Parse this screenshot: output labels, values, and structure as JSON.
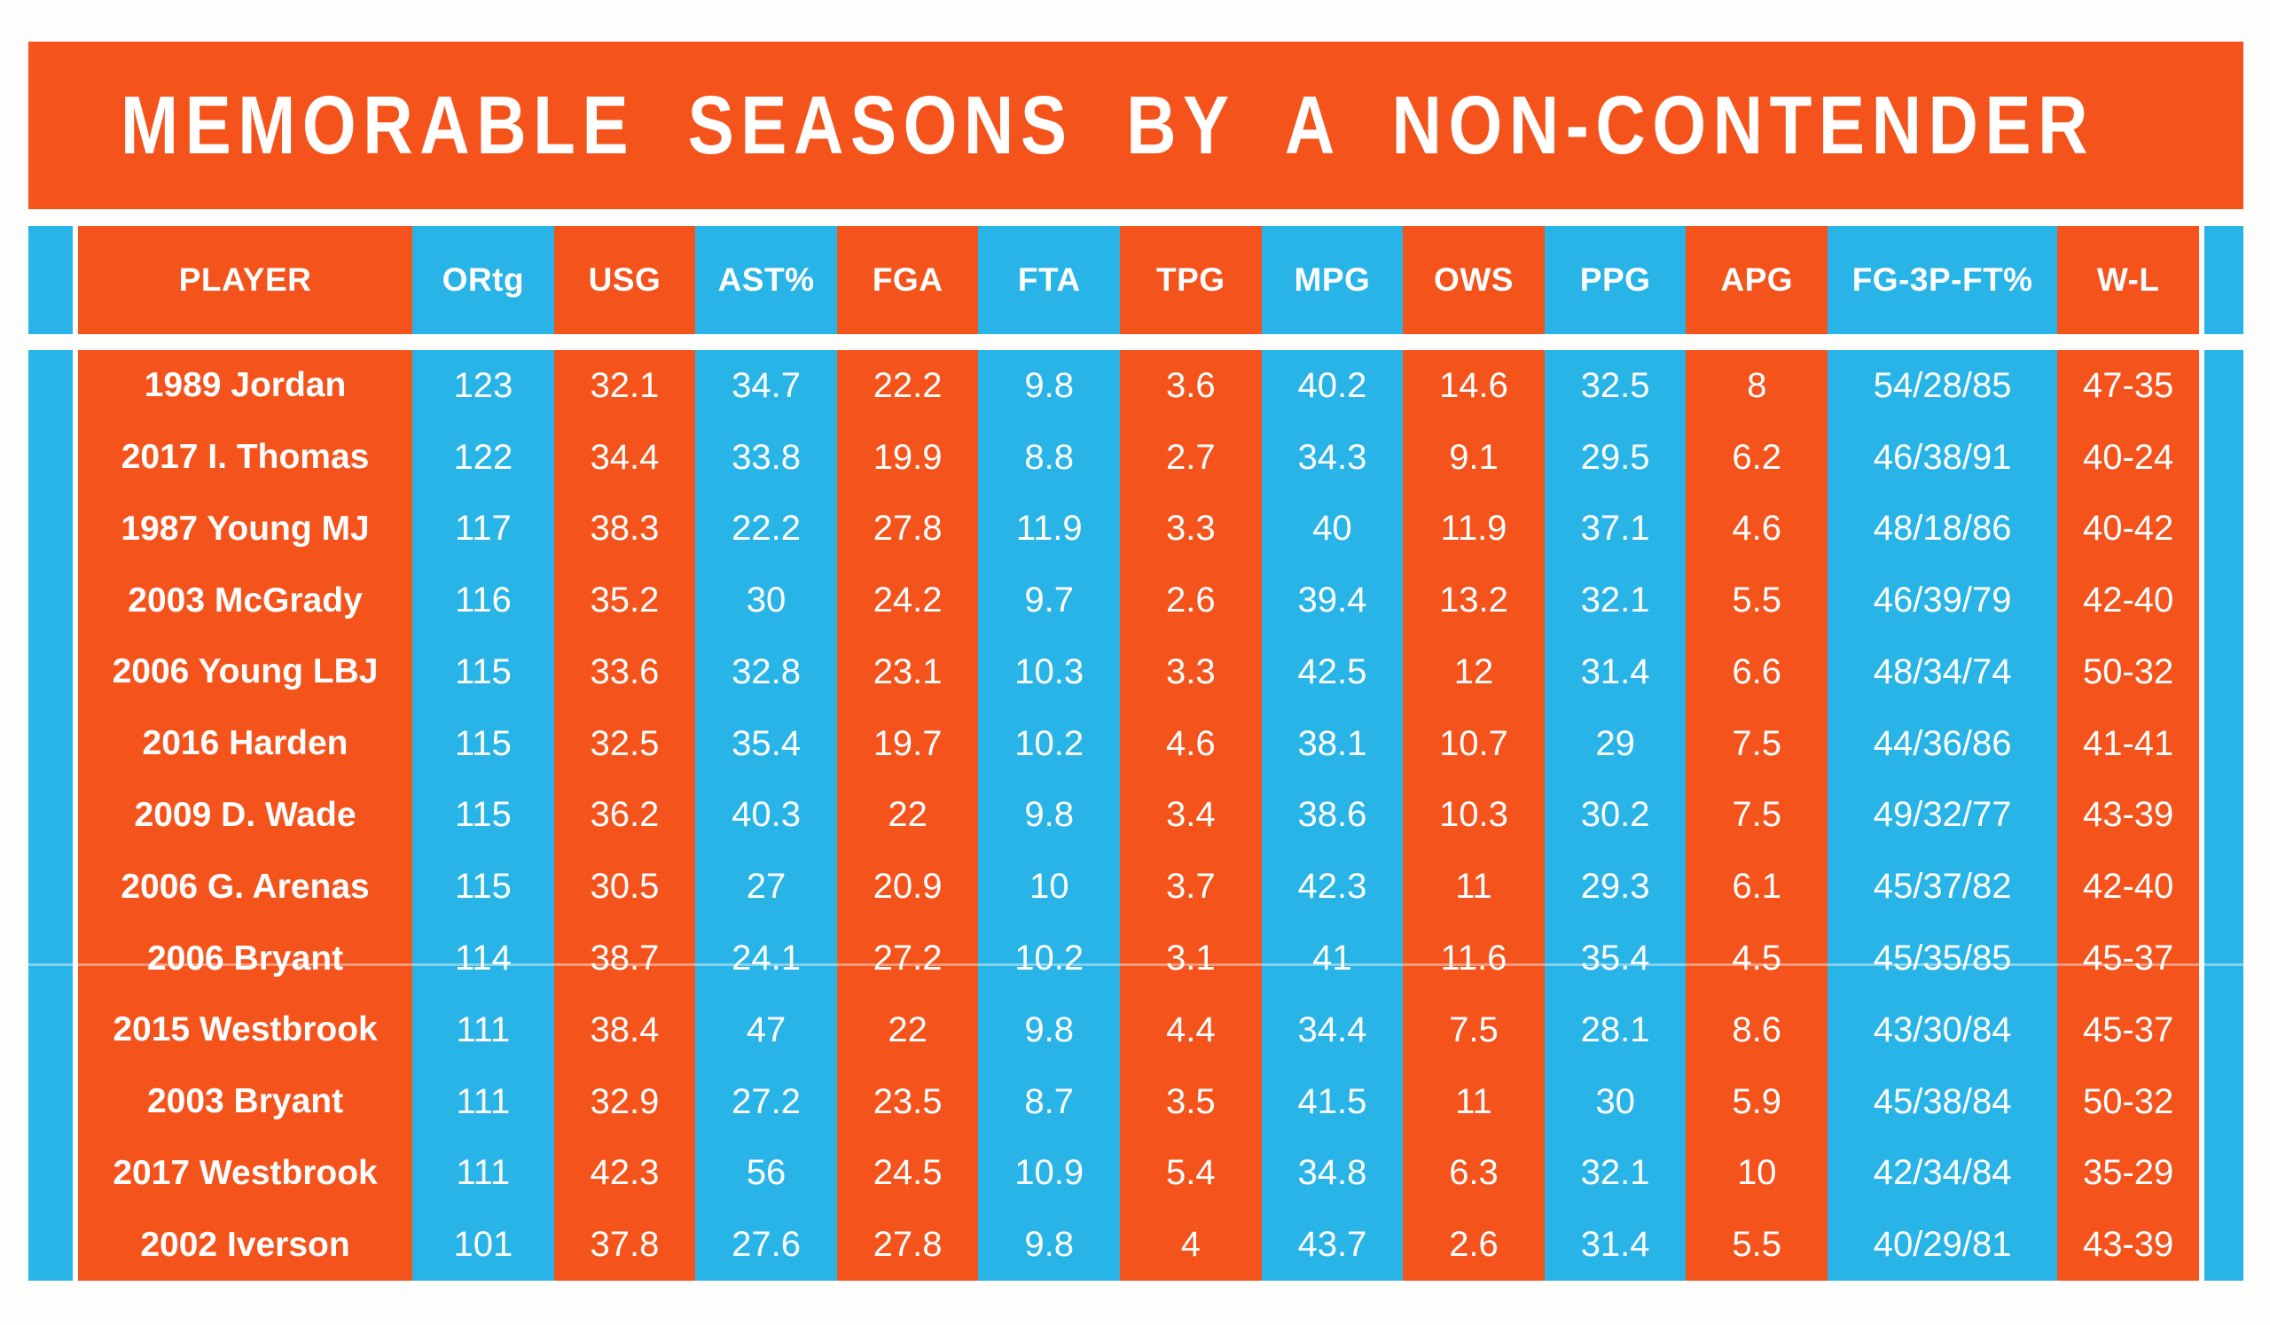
{
  "title": "MEMORABLE SEASONS BY A NON-CONTENDER",
  "colors": {
    "orange": "#f4531c",
    "blue": "#29b4e8",
    "text": "#ffffff",
    "page_bg": "#fdfdfb"
  },
  "chart_data": {
    "type": "table",
    "title": "MEMORABLE SEASONS BY A NON-CONTENDER",
    "columns": [
      "PLAYER",
      "ORtg",
      "USG",
      "AST%",
      "FGA",
      "FTA",
      "TPG",
      "MPG",
      "OWS",
      "PPG",
      "APG",
      "FG-3P-FT%",
      "W-L"
    ],
    "rows": [
      [
        "1989 Jordan",
        "123",
        "32.1",
        "34.7",
        "22.2",
        "9.8",
        "3.6",
        "40.2",
        "14.6",
        "32.5",
        "8",
        "54/28/85",
        "47-35"
      ],
      [
        "2017 I. Thomas",
        "122",
        "34.4",
        "33.8",
        "19.9",
        "8.8",
        "2.7",
        "34.3",
        "9.1",
        "29.5",
        "6.2",
        "46/38/91",
        "40-24"
      ],
      [
        "1987 Young MJ",
        "117",
        "38.3",
        "22.2",
        "27.8",
        "11.9",
        "3.3",
        "40",
        "11.9",
        "37.1",
        "4.6",
        "48/18/86",
        "40-42"
      ],
      [
        "2003 McGrady",
        "116",
        "35.2",
        "30",
        "24.2",
        "9.7",
        "2.6",
        "39.4",
        "13.2",
        "32.1",
        "5.5",
        "46/39/79",
        "42-40"
      ],
      [
        "2006 Young LBJ",
        "115",
        "33.6",
        "32.8",
        "23.1",
        "10.3",
        "3.3",
        "42.5",
        "12",
        "31.4",
        "6.6",
        "48/34/74",
        "50-32"
      ],
      [
        "2016 Harden",
        "115",
        "32.5",
        "35.4",
        "19.7",
        "10.2",
        "4.6",
        "38.1",
        "10.7",
        "29",
        "7.5",
        "44/36/86",
        "41-41"
      ],
      [
        "2009 D. Wade",
        "115",
        "36.2",
        "40.3",
        "22",
        "9.8",
        "3.4",
        "38.6",
        "10.3",
        "30.2",
        "7.5",
        "49/32/77",
        "43-39"
      ],
      [
        "2006 G. Arenas",
        "115",
        "30.5",
        "27",
        "20.9",
        "10",
        "3.7",
        "42.3",
        "11",
        "29.3",
        "6.1",
        "45/37/82",
        "42-40"
      ],
      [
        "2006 Bryant",
        "114",
        "38.7",
        "24.1",
        "27.2",
        "10.2",
        "3.1",
        "41",
        "11.6",
        "35.4",
        "4.5",
        "45/35/85",
        "45-37"
      ],
      [
        "2015 Westbrook",
        "111",
        "38.4",
        "47",
        "22",
        "9.8",
        "4.4",
        "34.4",
        "7.5",
        "28.1",
        "8.6",
        "43/30/84",
        "45-37"
      ],
      [
        "2003 Bryant",
        "111",
        "32.9",
        "27.2",
        "23.5",
        "8.7",
        "3.5",
        "41.5",
        "11",
        "30",
        "5.9",
        "45/38/84",
        "50-32"
      ],
      [
        "2017 Westbrook",
        "111",
        "42.3",
        "56",
        "24.5",
        "10.9",
        "5.4",
        "34.8",
        "6.3",
        "32.1",
        "10",
        "42/34/84",
        "35-29"
      ],
      [
        "2002 Iverson",
        "101",
        "37.8",
        "27.6",
        "27.8",
        "9.8",
        "4",
        "43.7",
        "2.6",
        "31.4",
        "5.5",
        "40/29/81",
        "43-39"
      ]
    ]
  }
}
